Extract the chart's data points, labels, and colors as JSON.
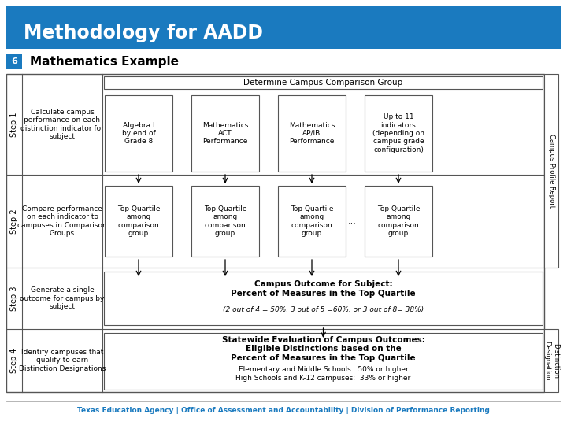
{
  "title": "Methodology for AADD",
  "title_bg": "#1a7abf",
  "title_fg": "#ffffff",
  "page_num": "6",
  "page_num_bg": "#1a7abf",
  "subtitle": "Mathematics Example",
  "footer": "Texas Education Agency | Office of Assessment and Accountability | Division of Performance Reporting",
  "footer_color": "#1a7abf",
  "bg_color": "#ffffff",
  "box_border": "#555555",
  "step_labels": [
    "Step 1",
    "Step 2",
    "Step 3",
    "Step 4"
  ],
  "step_descriptions": [
    "Calculate campus\nperformance on each\ndistinction indicator for\nsubject",
    "Compare performance\non each indicator to\ncampuses in Comparison\nGroups",
    "Generate a single\noutcome for campus by\nsubject",
    "Identify campuses that\nqualify to earn\nDistinction Designations"
  ],
  "determine_label": "Determine Campus Comparison Group",
  "indicators": [
    "Algebra I\nby end of\nGrade 8",
    "Mathematics\nACT\nPerformance",
    "Mathematics\nAP/IB\nPerformance",
    "Up to 11\nindicators\n(depending on\ncampus grade\nconfiguration)"
  ],
  "top_quartile": "Top Quartile\namong\ncomparison\ngroup",
  "campus_outcome_title": "Campus Outcome for Subject:\nPercent of Measures in the Top Quartile",
  "campus_outcome_sub": "(2 out of 4 = 50%, 3 out of 5 =60%, or 3 out of 8= 38%)",
  "statewide_title": "Statewide Evaluation of Campus Outcomes:\nEligible Distinctions based on the\nPercent of Measures in the Top Quartile",
  "statewide_sub1": "Elementary and Middle Schools:  50% or higher",
  "statewide_sub2": "High Schools and K-12 campuses:  33% or higher",
  "campus_profile_label": "Campus Profile Report",
  "distinction_label": "Distinction\nDesignation",
  "ellipsis": "..."
}
